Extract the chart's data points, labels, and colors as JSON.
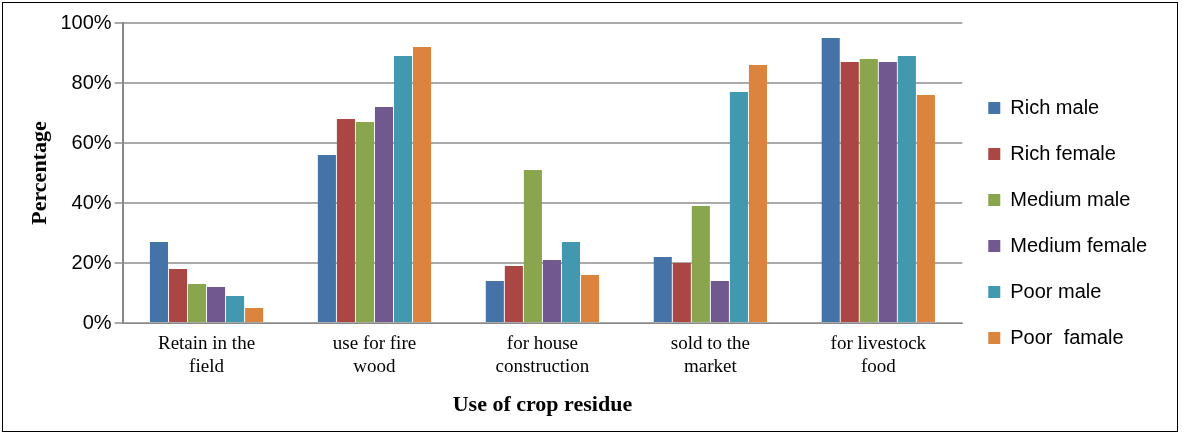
{
  "chart_data": {
    "type": "bar",
    "xlabel": "Use of crop residue",
    "ylabel": "Percentage",
    "categories": [
      "Retain in the field",
      "use for fire wood",
      "for house construction",
      "sold to the market",
      "for livestock food"
    ],
    "series": [
      {
        "name": "Rich male",
        "color": "#4572a7",
        "values": [
          27,
          56,
          14,
          22,
          95
        ]
      },
      {
        "name": "Rich female",
        "color": "#aa4643",
        "values": [
          18,
          68,
          19,
          20,
          87
        ]
      },
      {
        "name": "Medium male",
        "color": "#89a54e",
        "values": [
          13,
          67,
          51,
          39,
          88
        ]
      },
      {
        "name": "Medium female",
        "color": "#71588f",
        "values": [
          12,
          72,
          21,
          14,
          87
        ]
      },
      {
        "name": "Poor male",
        "color": "#4198af",
        "values": [
          9,
          89,
          27,
          77,
          89
        ]
      },
      {
        "name": "Poor  famale",
        "color": "#db843d",
        "values": [
          5,
          92,
          16,
          86,
          76
        ]
      }
    ],
    "ylim": [
      0,
      100
    ],
    "yticks": [
      {
        "value": 0,
        "label": "0%"
      },
      {
        "value": 20,
        "label": "20%"
      },
      {
        "value": 40,
        "label": "40%"
      },
      {
        "value": 60,
        "label": "60%"
      },
      {
        "value": 80,
        "label": "80%"
      },
      {
        "value": 100,
        "label": "100%"
      }
    ],
    "grid": "y",
    "legend": "right"
  }
}
